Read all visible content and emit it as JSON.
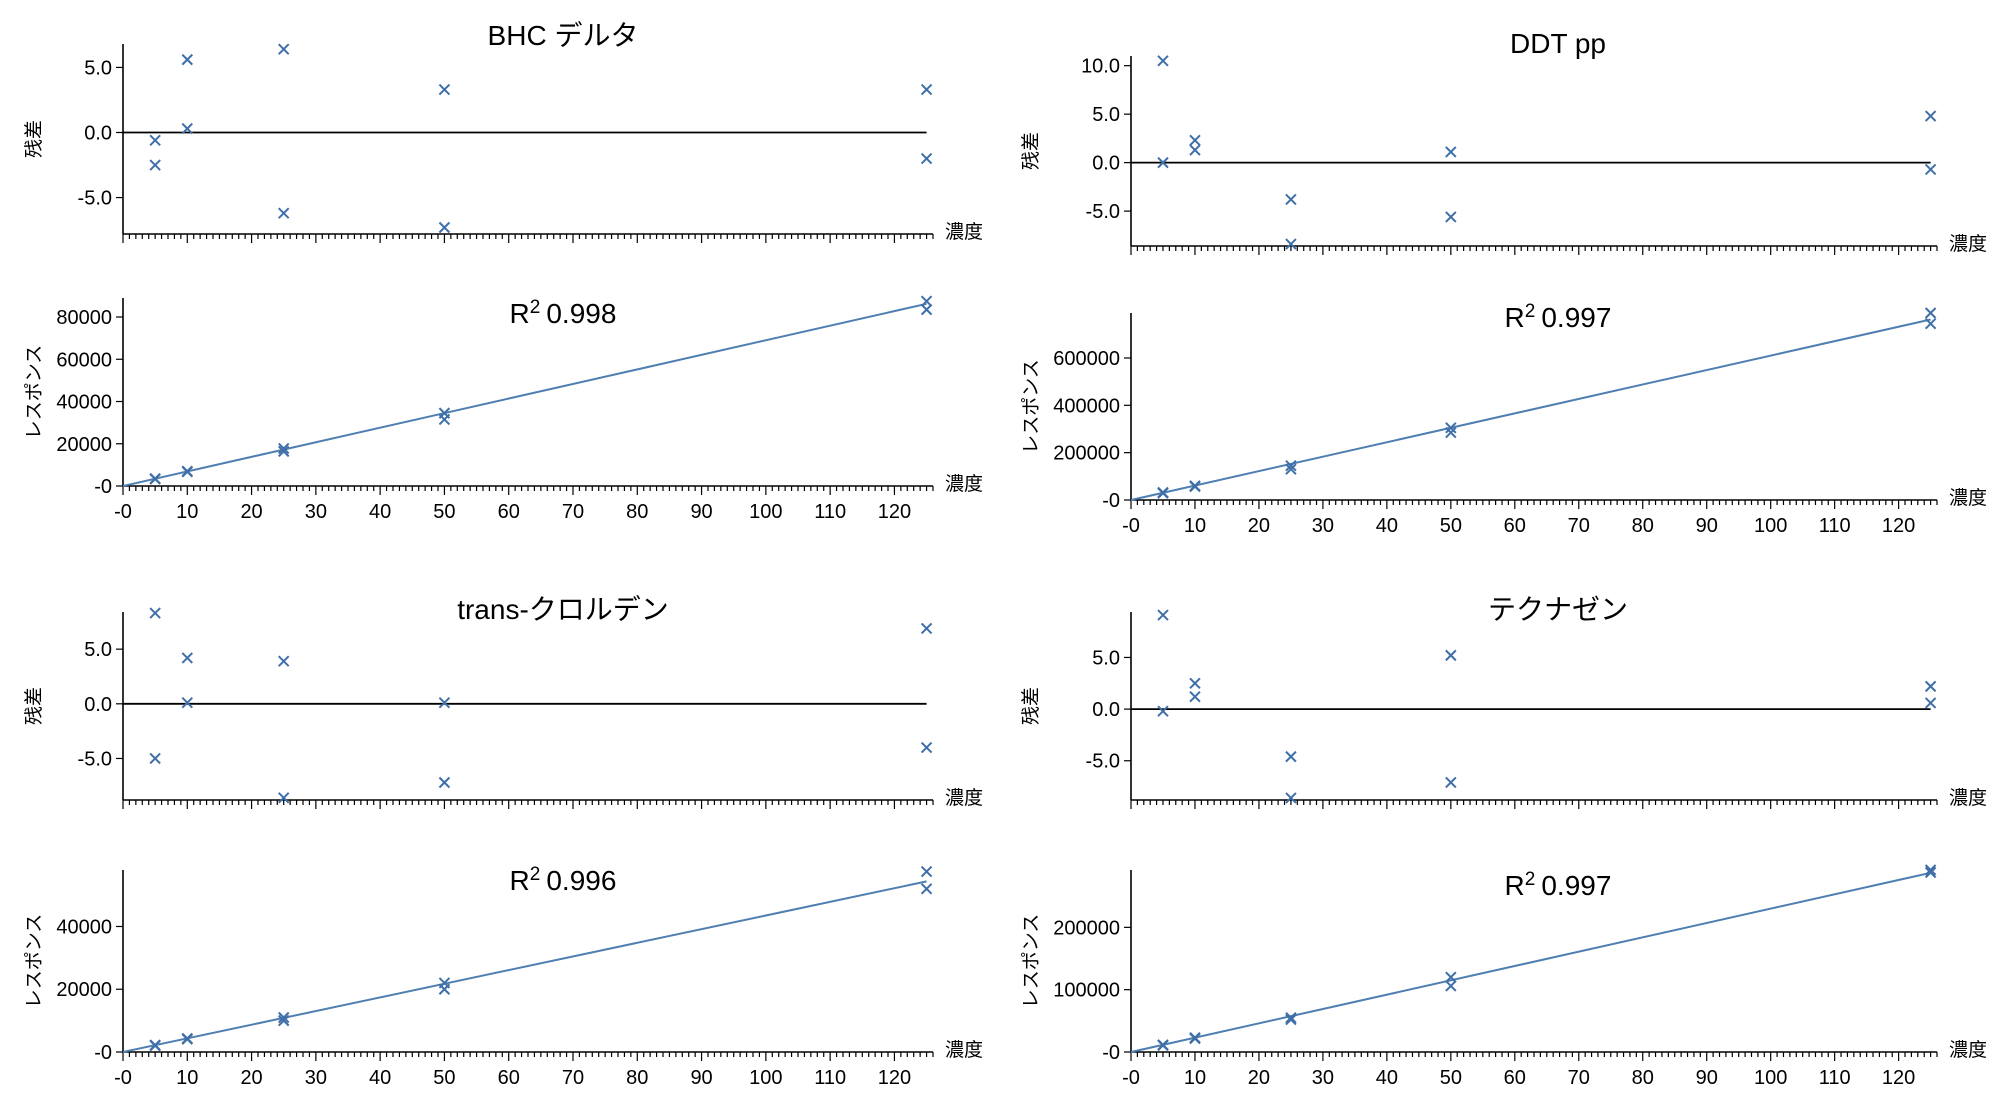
{
  "chart_data": [
    {
      "id": "bhc",
      "type": "scatter",
      "title": "BHC デルタ",
      "r2_label": "R",
      "r2_sup": "2",
      "r2_value": "0.998",
      "xlabel": "濃度",
      "residual_ylabel": "残差",
      "response_ylabel": "レスポンス",
      "residual": {
        "ylim": [
          -7.8,
          6.8
        ],
        "yticks": [
          -5.0,
          0.0,
          5.0
        ],
        "ytick_labels": [
          "-5.0",
          "0.0",
          "5.0"
        ],
        "points": [
          [
            5,
            -0.6
          ],
          [
            5,
            -2.5
          ],
          [
            10,
            5.6
          ],
          [
            10,
            0.3
          ],
          [
            25,
            6.4
          ],
          [
            25,
            -6.2
          ],
          [
            50,
            3.3
          ],
          [
            50,
            -7.3
          ],
          [
            125,
            3.3
          ],
          [
            125,
            -2.0
          ]
        ]
      },
      "response": {
        "ylim": [
          0,
          89000
        ],
        "yticks": [
          0,
          20000,
          40000,
          60000,
          80000
        ],
        "ytick_labels": [
          "-0",
          "20000",
          "40000",
          "60000",
          "80000"
        ],
        "fit_slope": 690,
        "fit_intercept": 0,
        "points": [
          [
            5,
            3500
          ],
          [
            5,
            3300
          ],
          [
            10,
            7000
          ],
          [
            10,
            6700
          ],
          [
            25,
            17800
          ],
          [
            25,
            16400
          ],
          [
            50,
            34500
          ],
          [
            50,
            31500
          ],
          [
            125,
            87500
          ],
          [
            125,
            83500
          ]
        ]
      },
      "xaxis": {
        "xlim": [
          0,
          126
        ],
        "xticks": [
          0,
          10,
          20,
          30,
          40,
          50,
          60,
          70,
          80,
          90,
          100,
          110,
          120
        ],
        "xtick_labels": [
          "-0",
          "10",
          "20",
          "30",
          "40",
          "50",
          "60",
          "70",
          "80",
          "90",
          "100",
          "110",
          "120"
        ]
      }
    },
    {
      "id": "ddt",
      "type": "scatter",
      "title": "DDT pp",
      "r2_label": "R",
      "r2_sup": "2",
      "r2_value": "0.997",
      "xlabel": "濃度",
      "residual_ylabel": "残差",
      "response_ylabel": "レスポンス",
      "residual": {
        "ylim": [
          -8.6,
          11.0
        ],
        "yticks": [
          -5.0,
          0.0,
          5.0,
          10.0
        ],
        "ytick_labels": [
          "-5.0",
          "0.0",
          "5.0",
          "10.0"
        ],
        "points": [
          [
            5,
            10.5
          ],
          [
            5,
            0.0
          ],
          [
            10,
            2.3
          ],
          [
            10,
            1.3
          ],
          [
            25,
            -3.8
          ],
          [
            25,
            -8.4
          ],
          [
            50,
            1.1
          ],
          [
            50,
            -5.6
          ],
          [
            125,
            4.8
          ],
          [
            125,
            -0.7
          ]
        ]
      },
      "response": {
        "ylim": [
          0,
          790000
        ],
        "yticks": [
          0,
          200000,
          400000,
          600000
        ],
        "ytick_labels": [
          "-0",
          "200000",
          "400000",
          "600000"
        ],
        "fit_slope": 6100,
        "fit_intercept": 0,
        "points": [
          [
            5,
            32000
          ],
          [
            5,
            29000
          ],
          [
            10,
            60000
          ],
          [
            10,
            57000
          ],
          [
            25,
            145000
          ],
          [
            25,
            130000
          ],
          [
            50,
            305000
          ],
          [
            50,
            285000
          ],
          [
            125,
            790000
          ],
          [
            125,
            745000
          ]
        ]
      },
      "xaxis": {
        "xlim": [
          0,
          126
        ],
        "xticks": [
          0,
          10,
          20,
          30,
          40,
          50,
          60,
          70,
          80,
          90,
          100,
          110,
          120
        ],
        "xtick_labels": [
          "-0",
          "10",
          "20",
          "30",
          "40",
          "50",
          "60",
          "70",
          "80",
          "90",
          "100",
          "110",
          "120"
        ]
      }
    },
    {
      "id": "chlordane",
      "type": "scatter",
      "title": "trans-クロルデン",
      "r2_label": "R",
      "r2_sup": "2",
      "r2_value": "0.996",
      "xlabel": "濃度",
      "residual_ylabel": "残差",
      "response_ylabel": "レスポンス",
      "residual": {
        "ylim": [
          -8.8,
          8.4
        ],
        "yticks": [
          -5.0,
          0.0,
          5.0
        ],
        "ytick_labels": [
          "-5.0",
          "0.0",
          "5.0"
        ],
        "points": [
          [
            5,
            8.3
          ],
          [
            5,
            -5.0
          ],
          [
            10,
            4.2
          ],
          [
            10,
            0.1
          ],
          [
            25,
            3.9
          ],
          [
            25,
            -8.6
          ],
          [
            50,
            0.1
          ],
          [
            50,
            -7.2
          ],
          [
            125,
            6.9
          ],
          [
            125,
            -4.0
          ]
        ]
      },
      "response": {
        "ylim": [
          0,
          58000
        ],
        "yticks": [
          0,
          20000,
          40000
        ],
        "ytick_labels": [
          "-0",
          "20000",
          "40000"
        ],
        "fit_slope": 435,
        "fit_intercept": 0,
        "points": [
          [
            5,
            2200
          ],
          [
            5,
            2000
          ],
          [
            10,
            4300
          ],
          [
            10,
            4100
          ],
          [
            25,
            11000
          ],
          [
            25,
            10000
          ],
          [
            50,
            22000
          ],
          [
            50,
            20000
          ],
          [
            125,
            57500
          ],
          [
            125,
            52000
          ]
        ]
      },
      "xaxis": {
        "xlim": [
          0,
          126
        ],
        "xticks": [
          0,
          10,
          20,
          30,
          40,
          50,
          60,
          70,
          80,
          90,
          100,
          110,
          120
        ],
        "xtick_labels": [
          "-0",
          "10",
          "20",
          "30",
          "40",
          "50",
          "60",
          "70",
          "80",
          "90",
          "100",
          "110",
          "120"
        ]
      }
    },
    {
      "id": "tecnazene",
      "type": "scatter",
      "title": "テクナゼン",
      "r2_label": "R",
      "r2_sup": "2",
      "r2_value": "0.997",
      "xlabel": "濃度",
      "residual_ylabel": "残差",
      "response_ylabel": "レスポンス",
      "residual": {
        "ylim": [
          -8.8,
          9.4
        ],
        "yticks": [
          -5.0,
          0.0,
          5.0
        ],
        "ytick_labels": [
          "-5.0",
          "0.0",
          "5.0"
        ],
        "points": [
          [
            5,
            9.1
          ],
          [
            5,
            -0.2
          ],
          [
            10,
            2.5
          ],
          [
            10,
            1.2
          ],
          [
            25,
            -4.6
          ],
          [
            25,
            -8.6
          ],
          [
            50,
            5.2
          ],
          [
            50,
            -7.1
          ],
          [
            125,
            2.2
          ],
          [
            125,
            0.6
          ]
        ]
      },
      "response": {
        "ylim": [
          0,
          292000
        ],
        "yticks": [
          0,
          100000,
          200000
        ],
        "ytick_labels": [
          "-0",
          "100000",
          "200000"
        ],
        "fit_slope": 2300,
        "fit_intercept": 0,
        "points": [
          [
            5,
            11500
          ],
          [
            5,
            10500
          ],
          [
            10,
            23000
          ],
          [
            10,
            21500
          ],
          [
            25,
            55000
          ],
          [
            25,
            52000
          ],
          [
            50,
            120000
          ],
          [
            50,
            106000
          ],
          [
            125,
            292000
          ],
          [
            125,
            288000
          ]
        ]
      },
      "xaxis": {
        "xlim": [
          0,
          126
        ],
        "xticks": [
          0,
          10,
          20,
          30,
          40,
          50,
          60,
          70,
          80,
          90,
          100,
          110,
          120
        ],
        "xtick_labels": [
          "-0",
          "10",
          "20",
          "30",
          "40",
          "50",
          "60",
          "70",
          "80",
          "90",
          "100",
          "110",
          "120"
        ]
      }
    }
  ]
}
